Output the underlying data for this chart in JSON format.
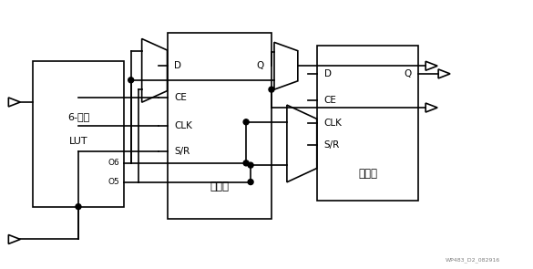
{
  "bg_color": "#ffffff",
  "lc": "#000000",
  "lw": 1.2,
  "fs": 7.5,
  "lut_label1": "6-输入",
  "lut_label2": "LUT",
  "o6": "O6",
  "o5": "O5",
  "reg1_labels": [
    "D",
    "CE",
    "CLK",
    "S/R"
  ],
  "reg1_q": "Q",
  "reg1_title": "寄存器",
  "reg2_labels": [
    "D",
    "CE",
    "CLK",
    "S/R"
  ],
  "reg2_q": "Q",
  "reg2_title": "寄存器",
  "watermark": "WP483_D2_082916"
}
